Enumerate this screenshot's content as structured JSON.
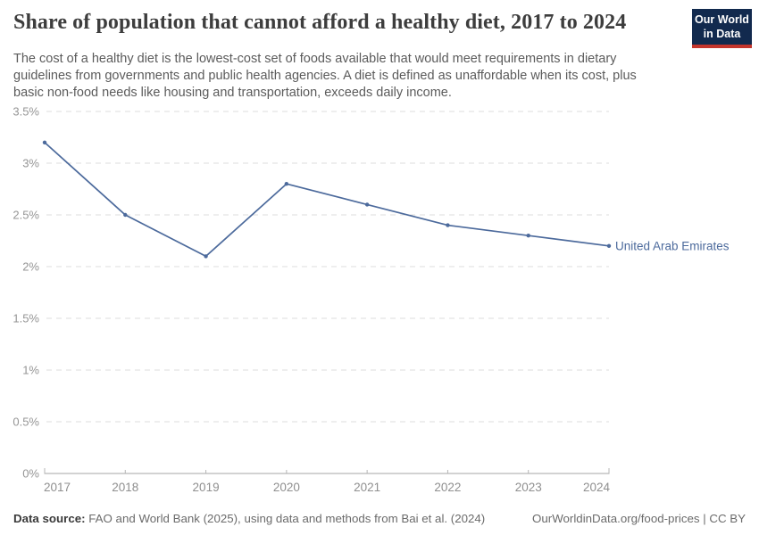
{
  "header": {
    "title": "Share of population that cannot afford a healthy diet, 2017 to 2024",
    "subtitle": "The cost of a healthy diet is the lowest-cost set of foods available that would meet requirements in dietary guidelines from governments and public health agencies. A diet is defined as unaffordable when its cost, plus basic non-food needs like housing and transportation, exceeds daily income.",
    "logo": {
      "line1": "Our World",
      "line2": "in Data",
      "bg_color": "#122a4e",
      "accent_color": "#c4352c"
    }
  },
  "chart_data": {
    "type": "line",
    "title": "Share of population that cannot afford a healthy diet, 2017 to 2024",
    "x": [
      2017,
      2018,
      2019,
      2020,
      2021,
      2022,
      2023,
      2024
    ],
    "series": [
      {
        "name": "United Arab Emirates",
        "values": [
          3.2,
          2.5,
          2.1,
          2.8,
          2.6,
          2.4,
          2.3,
          2.2
        ],
        "color": "#4c6a9c"
      }
    ],
    "xlabel": "",
    "ylabel": "",
    "ylim": [
      0,
      3.5
    ],
    "yticks": [
      0,
      0.5,
      1,
      1.5,
      2,
      2.5,
      3,
      3.5
    ],
    "ytick_labels": [
      "0%",
      "0.5%",
      "1%",
      "1.5%",
      "2%",
      "2.5%",
      "3%",
      "3.5%"
    ],
    "grid": "horizontal-dashed",
    "legend_position": "end-of-line-label"
  },
  "footer": {
    "source_label": "Data source:",
    "source_text": "FAO and World Bank (2025), using data and methods from Bai et al. (2024)",
    "attribution": "OurWorldinData.org/food-prices | CC BY"
  }
}
